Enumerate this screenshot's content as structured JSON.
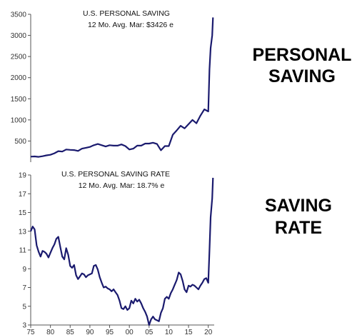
{
  "side_labels": {
    "top": [
      "PERSONAL",
      "SAVING"
    ],
    "bottom": [
      "SAVING",
      "RATE"
    ]
  },
  "colors": {
    "line": "#1a1a6e",
    "axis": "#555555",
    "text": "#111111"
  },
  "chart_data": [
    {
      "type": "line",
      "annotation_lines": [
        "U.S. PERSONAL SAVING",
        "12 Mo. Avg.    Mar: $3426 e"
      ],
      "xlim": [
        1975,
        2021.5
      ],
      "ylim": [
        0,
        3500
      ],
      "yticks": [
        500,
        1000,
        1500,
        2000,
        2500,
        3000,
        3500
      ],
      "series": [
        {
          "x": [
            1975,
            1976,
            1977,
            1978,
            1979,
            1980,
            1981,
            1982,
            1983,
            1984,
            1985,
            1986,
            1987,
            1988,
            1989,
            1990,
            1991,
            1992,
            1993,
            1994,
            1995,
            1996,
            1997,
            1998,
            1999,
            2000,
            2001,
            2002,
            2003,
            2004,
            2005,
            2006,
            2007,
            2008,
            2009,
            2010,
            2011,
            2012,
            2013,
            2014,
            2015,
            2016,
            2017,
            2018,
            2019,
            2020,
            2020.3,
            2020.6,
            2021.0,
            2021.2
          ],
          "y": [
            130,
            135,
            125,
            140,
            160,
            175,
            210,
            260,
            250,
            300,
            290,
            285,
            265,
            320,
            340,
            360,
            400,
            430,
            400,
            370,
            400,
            390,
            390,
            420,
            380,
            300,
            320,
            390,
            390,
            440,
            440,
            460,
            430,
            280,
            380,
            380,
            650,
            750,
            860,
            800,
            900,
            1000,
            920,
            1100,
            1250,
            1200,
            2200,
            2700,
            3000,
            3426
          ]
        }
      ]
    },
    {
      "type": "line",
      "annotation_lines": [
        "U.S. PERSONAL SAVING RATE",
        "12 Mo. Avg.    Mar: 18.7% e"
      ],
      "xlim": [
        1975,
        2021.5
      ],
      "ylim": [
        3,
        19
      ],
      "yticks": [
        3,
        5,
        7,
        9,
        11,
        13,
        15,
        17,
        19
      ],
      "xticks": [
        1975,
        1980,
        1985,
        1990,
        1995,
        2000,
        2005,
        2010,
        2015,
        2020
      ],
      "xtick_labels": [
        "75",
        "80",
        "85",
        "90",
        "95",
        "00",
        "05",
        "10",
        "15",
        "20"
      ],
      "series": [
        {
          "x": [
            1975,
            1975.5,
            1976,
            1976.5,
            1977,
            1977.5,
            1978,
            1978.5,
            1979,
            1979.5,
            1980,
            1980.5,
            1981,
            1981.5,
            1982,
            1982.5,
            1983,
            1983.5,
            1984,
            1984.5,
            1985,
            1985.5,
            1986,
            1986.5,
            1987,
            1987.5,
            1988,
            1988.5,
            1989,
            1989.5,
            1990,
            1990.5,
            1991,
            1991.5,
            1992,
            1992.5,
            1993,
            1993.5,
            1994,
            1994.5,
            1995,
            1995.5,
            1996,
            1996.5,
            1997,
            1997.5,
            1998,
            1998.5,
            1999,
            1999.5,
            2000,
            2000.5,
            2001,
            2001.5,
            2002,
            2002.5,
            2003,
            2003.5,
            2004,
            2004.5,
            2005,
            2005.5,
            2006,
            2006.5,
            2007,
            2007.5,
            2008,
            2008.5,
            2009,
            2009.5,
            2010,
            2010.5,
            2011,
            2011.5,
            2012,
            2012.5,
            2013,
            2013.5,
            2014,
            2014.5,
            2015,
            2015.5,
            2016,
            2016.5,
            2017,
            2017.5,
            2018,
            2018.5,
            2019,
            2019.5,
            2020,
            2020.3,
            2020.6,
            2021.0,
            2021.2
          ],
          "y": [
            13.0,
            13.5,
            13.2,
            11.5,
            10.8,
            10.3,
            10.9,
            10.8,
            10.6,
            10.2,
            10.7,
            11.2,
            11.6,
            12.2,
            12.4,
            11.3,
            10.3,
            10.0,
            11.2,
            10.5,
            9.3,
            9.1,
            9.4,
            8.3,
            7.9,
            8.2,
            8.5,
            8.4,
            8.1,
            8.3,
            8.4,
            8.5,
            9.3,
            9.4,
            8.9,
            8.1,
            7.5,
            7.0,
            7.1,
            6.9,
            6.8,
            6.6,
            6.8,
            6.5,
            6.2,
            5.6,
            4.8,
            4.7,
            5.0,
            4.6,
            4.8,
            5.6,
            5.3,
            5.8,
            5.5,
            5.7,
            5.3,
            4.8,
            4.4,
            3.9,
            3.0,
            3.6,
            3.9,
            3.6,
            3.5,
            3.4,
            4.3,
            4.8,
            5.8,
            6.0,
            5.8,
            6.4,
            6.8,
            7.3,
            7.8,
            8.6,
            8.4,
            7.7,
            6.8,
            6.5,
            7.2,
            7.1,
            7.3,
            7.2,
            7.0,
            6.8,
            7.2,
            7.5,
            7.9,
            8.0,
            7.5,
            11.0,
            14.5,
            16.5,
            18.7
          ]
        }
      ]
    }
  ]
}
